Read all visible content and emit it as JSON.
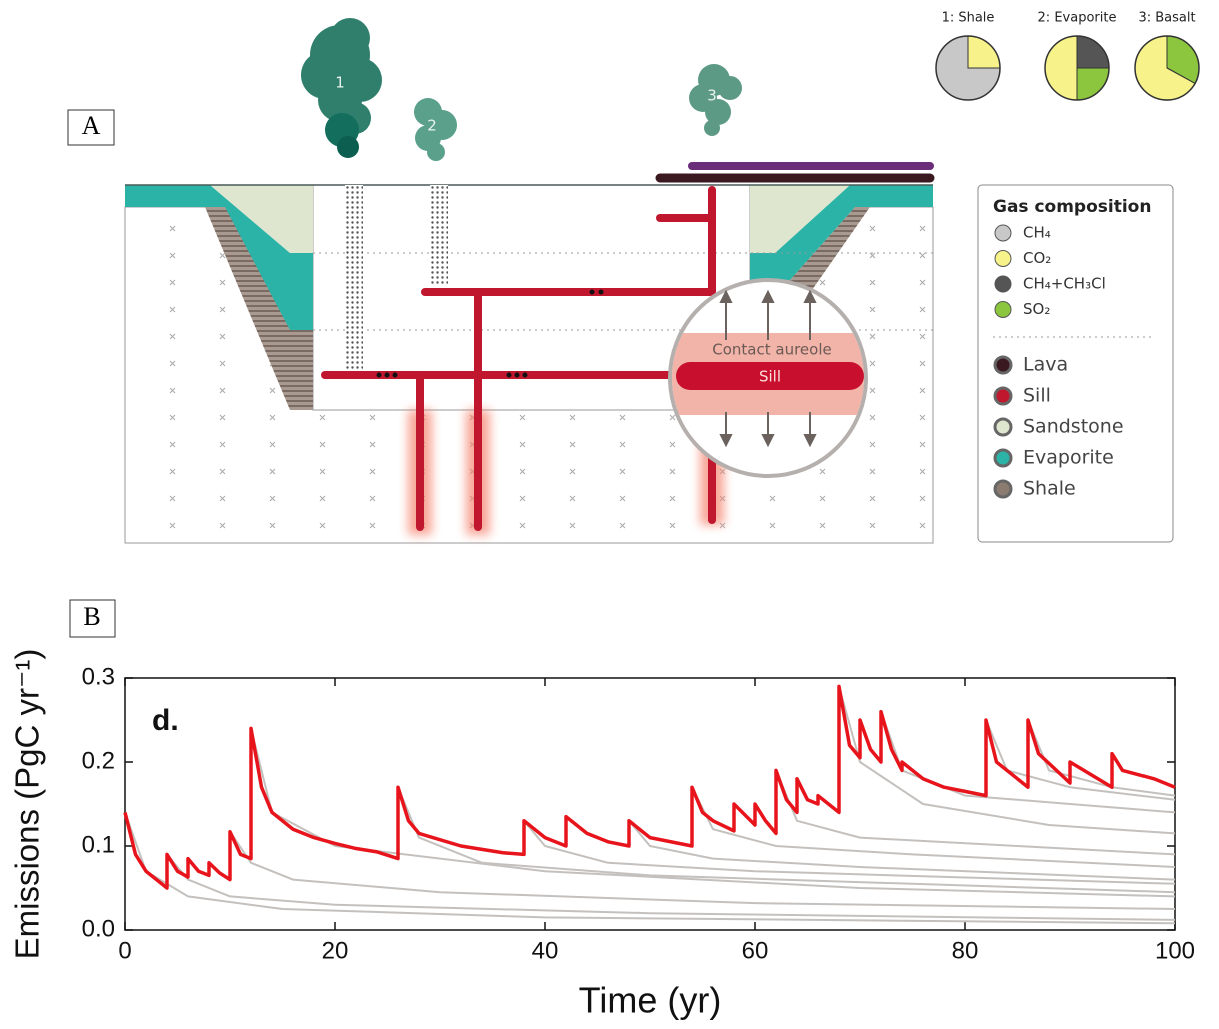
{
  "panel_a": {
    "label": "A",
    "plumes": [
      "1",
      "2",
      "3"
    ],
    "pies": [
      {
        "label": "1: Shale",
        "values": [
          25,
          75
        ],
        "colors": [
          "#f7f38a",
          "#c8c8c8"
        ]
      },
      {
        "label": "2: Evaporite",
        "values": [
          25,
          25,
          50
        ],
        "colors": [
          "#555555",
          "#8cc63f",
          "#f7f38a"
        ]
      },
      {
        "label": "3: Basalt",
        "values": [
          33,
          67
        ],
        "colors": [
          "#8cc63f",
          "#f7f38a"
        ]
      }
    ],
    "legend": {
      "title": "Gas composition",
      "gases": [
        {
          "label": "CH₄",
          "color": "#c8c8c8"
        },
        {
          "label": "CO₂",
          "color": "#f7f38a"
        },
        {
          "label": "CH₄+CH₃Cl",
          "color": "#555555"
        },
        {
          "label": "SO₂",
          "color": "#8cc63f"
        }
      ],
      "materials": [
        {
          "label": "Lava",
          "color": "#3a1a20"
        },
        {
          "label": "Sill",
          "color": "#c0172e"
        },
        {
          "label": "Sandstone",
          "color": "#dfe6cf"
        },
        {
          "label": "Evaporite",
          "color": "#2bb3a7"
        },
        {
          "label": "Shale",
          "color": "#8c7b70"
        }
      ]
    },
    "inset": {
      "aureole": "Contact aureole",
      "sill": "Sill"
    }
  },
  "panel_b": {
    "label": "B"
  },
  "chart_data": {
    "type": "line",
    "title": "d.",
    "x_label": "Time (yr)",
    "y_label": "Emissions (PgC yr⁻¹)",
    "xlim": [
      0,
      100
    ],
    "ylim": [
      0,
      0.3
    ],
    "xticks": [
      0,
      20,
      40,
      60,
      80,
      100
    ],
    "yticks": [
      {
        "value": 0,
        "label": "0.0"
      },
      {
        "value": 0.1,
        "label": "0.1"
      },
      {
        "value": 0.2,
        "label": "0.2"
      },
      {
        "value": 0.3,
        "label": "0.3"
      }
    ],
    "series": [
      {
        "color": "#c4c0bd",
        "x": [
          0,
          2,
          6,
          15,
          40,
          100
        ],
        "values": [
          0.14,
          0.07,
          0.04,
          0.025,
          0.015,
          0.008
        ]
      },
      {
        "color": "#c4c0bd",
        "x": [
          4,
          6,
          10,
          20,
          50,
          100
        ],
        "values": [
          0.09,
          0.06,
          0.04,
          0.03,
          0.02,
          0.012
        ]
      },
      {
        "color": "#c4c0bd",
        "x": [
          10,
          12,
          16,
          30,
          60,
          100
        ],
        "values": [
          0.117,
          0.08,
          0.06,
          0.045,
          0.032,
          0.025
        ]
      },
      {
        "color": "#c4c0bd",
        "x": [
          12,
          14,
          20,
          40,
          70,
          100
        ],
        "values": [
          0.24,
          0.14,
          0.1,
          0.07,
          0.05,
          0.04
        ]
      },
      {
        "color": "#c4c0bd",
        "x": [
          26,
          28,
          34,
          50,
          100
        ],
        "values": [
          0.17,
          0.11,
          0.08,
          0.065,
          0.045
        ]
      },
      {
        "color": "#c4c0bd",
        "x": [
          38,
          40,
          46,
          60,
          100
        ],
        "values": [
          0.13,
          0.1,
          0.08,
          0.07,
          0.055
        ]
      },
      {
        "color": "#c4c0bd",
        "x": [
          48,
          50,
          56,
          70,
          100
        ],
        "values": [
          0.13,
          0.1,
          0.085,
          0.075,
          0.06
        ]
      },
      {
        "color": "#c4c0bd",
        "x": [
          54,
          56,
          62,
          75,
          100
        ],
        "values": [
          0.17,
          0.12,
          0.1,
          0.09,
          0.075
        ]
      },
      {
        "color": "#c4c0bd",
        "x": [
          62,
          64,
          70,
          85,
          100
        ],
        "values": [
          0.19,
          0.13,
          0.11,
          0.1,
          0.09
        ]
      },
      {
        "color": "#c4c0bd",
        "x": [
          68,
          70,
          76,
          88,
          100
        ],
        "values": [
          0.29,
          0.2,
          0.15,
          0.125,
          0.115
        ]
      },
      {
        "color": "#c4c0bd",
        "x": [
          72,
          74,
          80,
          90,
          100
        ],
        "values": [
          0.26,
          0.19,
          0.16,
          0.15,
          0.14
        ]
      },
      {
        "color": "#c4c0bd",
        "x": [
          82,
          84,
          90,
          100
        ],
        "values": [
          0.25,
          0.19,
          0.17,
          0.155
        ]
      },
      {
        "color": "#c4c0bd",
        "x": [
          86,
          88,
          94,
          100
        ],
        "values": [
          0.25,
          0.19,
          0.17,
          0.16
        ]
      },
      {
        "color": "#e8141c",
        "x": [
          0,
          1,
          2,
          4,
          4,
          5,
          6,
          6,
          7,
          8,
          8,
          9,
          10,
          10,
          11,
          12,
          12,
          13,
          14,
          16,
          18,
          20,
          22,
          24,
          26,
          26,
          27,
          28,
          32,
          36,
          38,
          38,
          40,
          42,
          42,
          44,
          46,
          48,
          48,
          50,
          54,
          54,
          55,
          56,
          58,
          58,
          60,
          60,
          61,
          62,
          62,
          63,
          64,
          64,
          65,
          66,
          66,
          67,
          68,
          68,
          69,
          70,
          70,
          71,
          72,
          72,
          73,
          74,
          74,
          76,
          78,
          80,
          82,
          82,
          83,
          86,
          86,
          87,
          90,
          90,
          92,
          94,
          94,
          95,
          98,
          100
        ],
        "values": [
          0.14,
          0.09,
          0.07,
          0.05,
          0.09,
          0.07,
          0.063,
          0.085,
          0.07,
          0.065,
          0.08,
          0.068,
          0.06,
          0.117,
          0.09,
          0.085,
          0.24,
          0.17,
          0.14,
          0.12,
          0.11,
          0.103,
          0.097,
          0.093,
          0.085,
          0.17,
          0.13,
          0.115,
          0.1,
          0.092,
          0.09,
          0.13,
          0.11,
          0.1,
          0.135,
          0.115,
          0.105,
          0.1,
          0.13,
          0.11,
          0.1,
          0.17,
          0.14,
          0.13,
          0.118,
          0.15,
          0.125,
          0.15,
          0.13,
          0.115,
          0.19,
          0.155,
          0.14,
          0.18,
          0.155,
          0.15,
          0.16,
          0.15,
          0.14,
          0.29,
          0.22,
          0.205,
          0.25,
          0.215,
          0.2,
          0.26,
          0.215,
          0.19,
          0.2,
          0.18,
          0.17,
          0.165,
          0.16,
          0.25,
          0.2,
          0.17,
          0.25,
          0.21,
          0.175,
          0.2,
          0.185,
          0.17,
          0.21,
          0.19,
          0.18,
          0.17
        ]
      }
    ]
  }
}
